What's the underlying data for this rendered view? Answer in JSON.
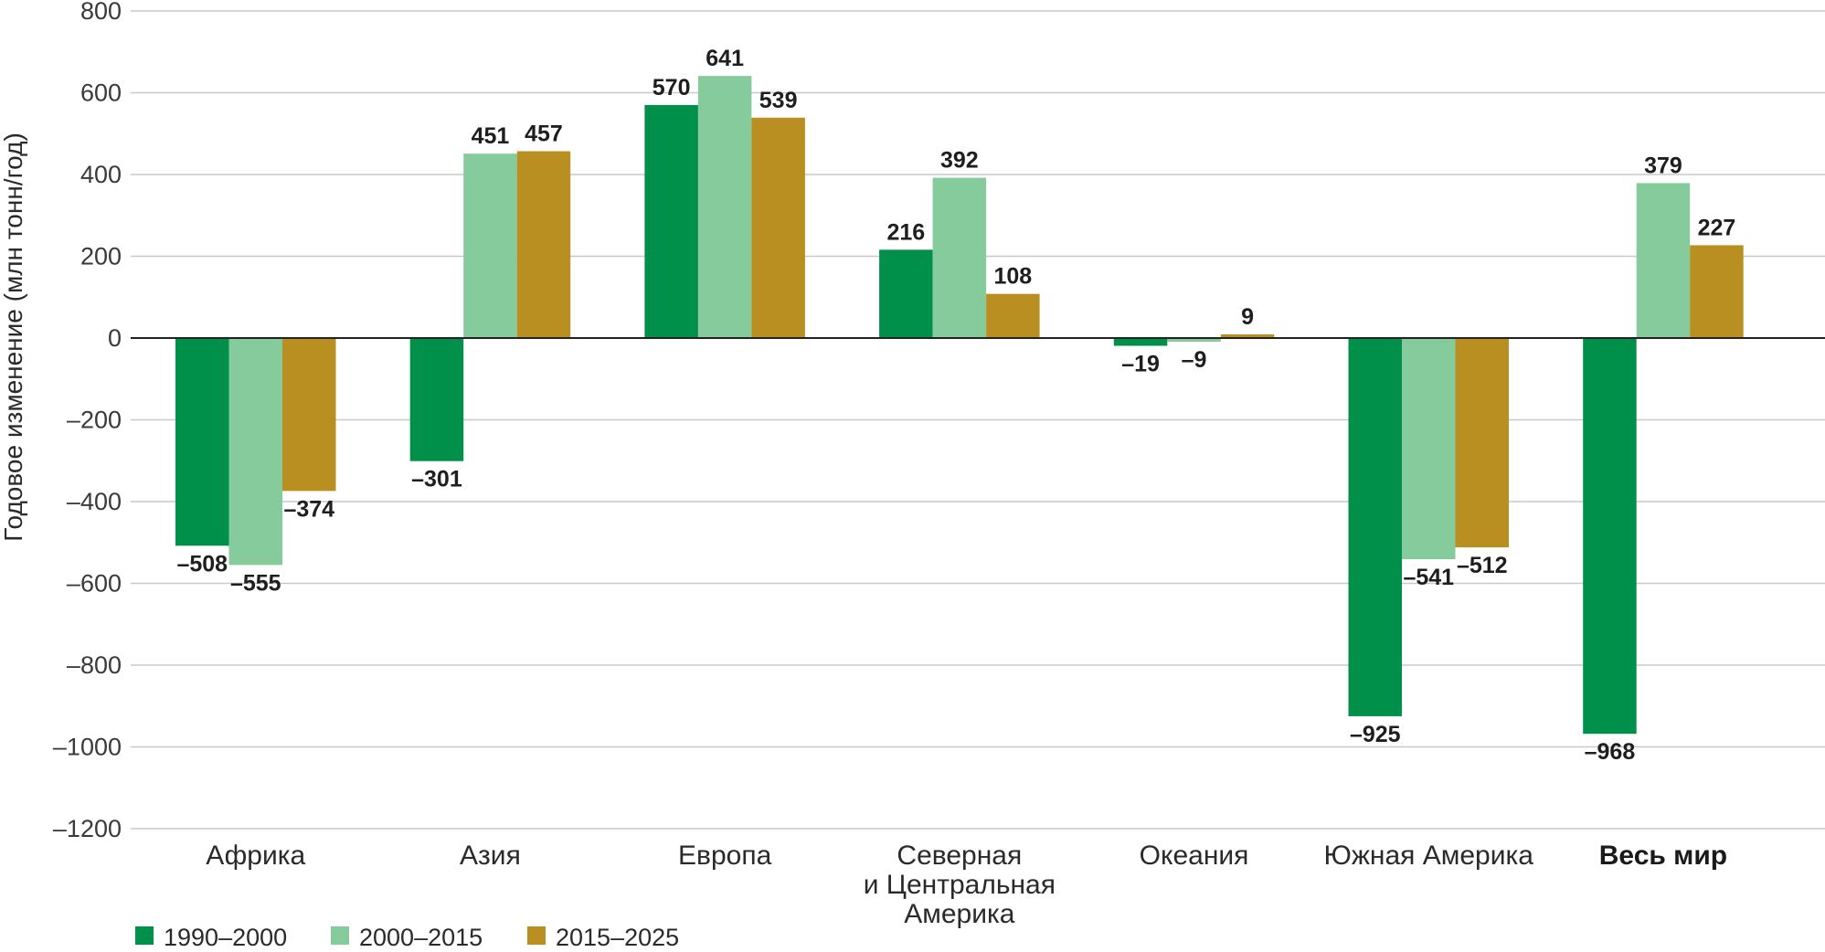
{
  "chart_data": {
    "type": "bar",
    "ylabel": "Годовое изменение (млн тонн/год)",
    "xlabel": "",
    "ylim": [
      -1200,
      800
    ],
    "yticks": [
      800,
      600,
      400,
      200,
      0,
      -200,
      -400,
      -600,
      -800,
      -1000,
      -1200
    ],
    "ytick_labels": [
      "800",
      "600",
      "400",
      "200",
      "0",
      "–200",
      "–400",
      "–600",
      "–800",
      "–1000",
      "–1200"
    ],
    "categories": [
      {
        "lines": [
          "Африка"
        ],
        "bold": false
      },
      {
        "lines": [
          "Азия"
        ],
        "bold": false
      },
      {
        "lines": [
          "Европа"
        ],
        "bold": false
      },
      {
        "lines": [
          "Северная",
          "и Центральная",
          "Америка"
        ],
        "bold": false
      },
      {
        "lines": [
          "Океания"
        ],
        "bold": false
      },
      {
        "lines": [
          "Южная Америка"
        ],
        "bold": false
      },
      {
        "lines": [
          "Весь мир"
        ],
        "bold": true
      }
    ],
    "series": [
      {
        "name": "1990–2000",
        "color": "#00904a",
        "values": [
          -508,
          -301,
          570,
          216,
          -19,
          -925,
          -968
        ],
        "labels": [
          "–508",
          "–301",
          "570",
          "216",
          "–19",
          "–925",
          "–968"
        ]
      },
      {
        "name": "2000–2015",
        "color": "#86cb9c",
        "values": [
          -555,
          451,
          641,
          392,
          -9,
          -541,
          379
        ],
        "labels": [
          "–555",
          "451",
          "641",
          "392",
          "–9",
          "–541",
          "379"
        ]
      },
      {
        "name": "2015–2025",
        "color": "#b98f22",
        "values": [
          -374,
          457,
          539,
          108,
          9,
          -512,
          227
        ],
        "labels": [
          "–374",
          "457",
          "539",
          "108",
          "9",
          "–512",
          "227"
        ]
      }
    ],
    "grid": true,
    "legend_position": "bottom-left"
  }
}
